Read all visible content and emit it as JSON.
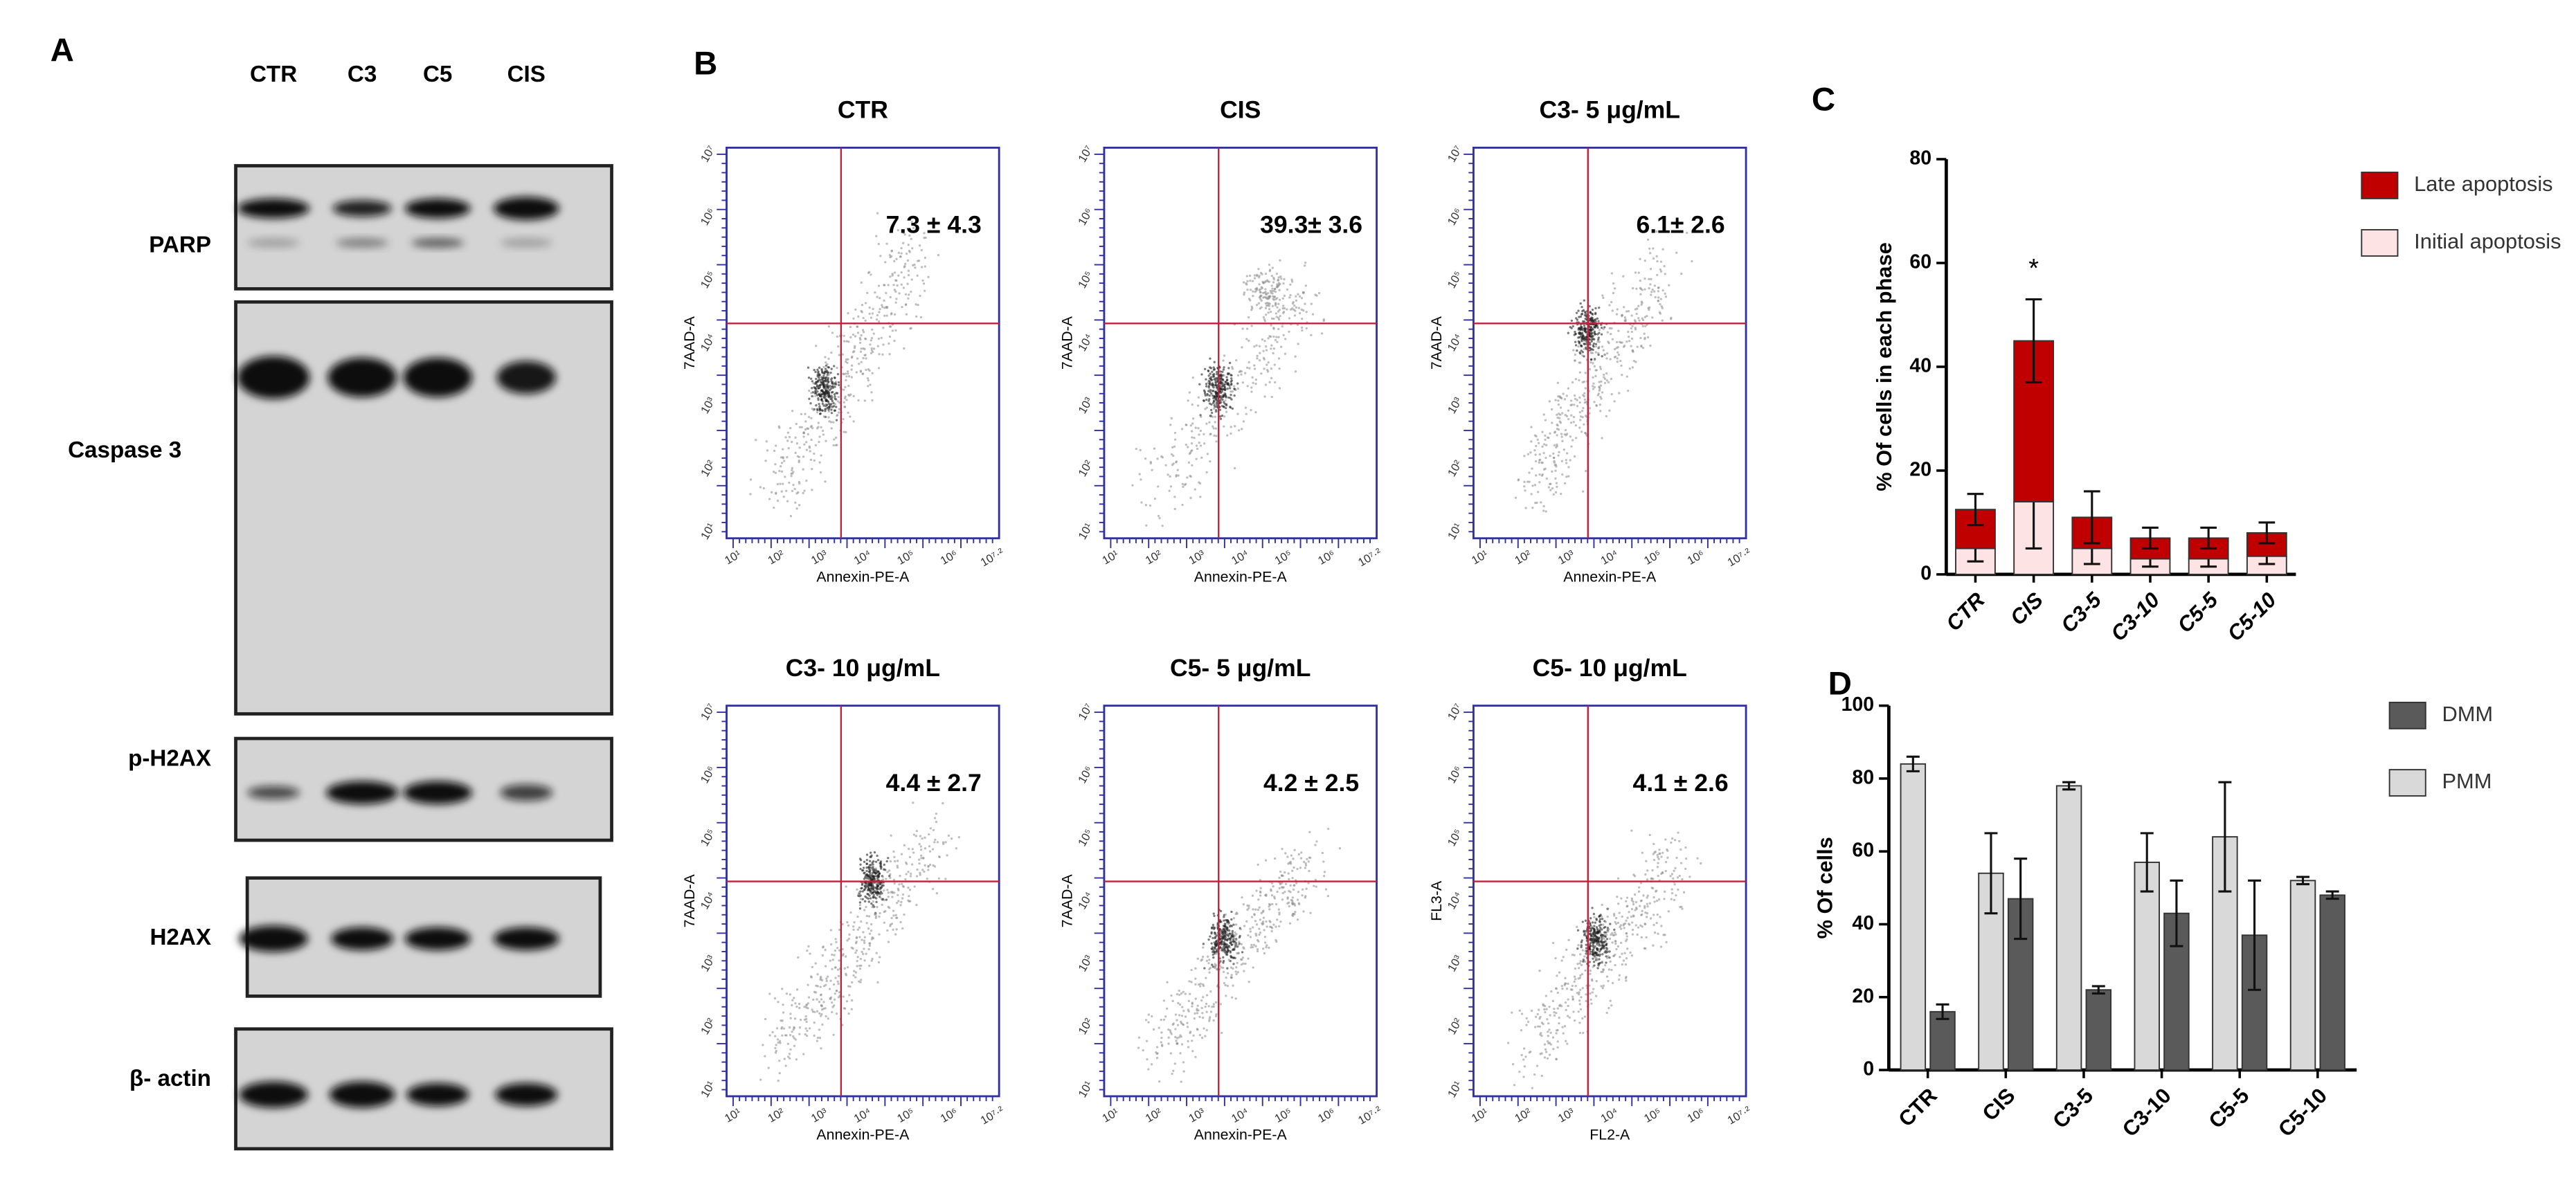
{
  "panel_a": {
    "label": "A",
    "lanes": [
      "CTR",
      "C3",
      "C5",
      "CIS"
    ],
    "blots": [
      "PARP",
      "Caspase 3",
      "p-H2AX",
      "H2AX",
      "β- actin"
    ]
  },
  "panel_b": {
    "label": "B",
    "x_ticks": [
      "10¹",
      "10²",
      "10³",
      "10⁴",
      "10⁵",
      "10⁶",
      "10⁷·²"
    ],
    "y_ticks": [
      "10¹",
      "10²",
      "10³",
      "10⁴",
      "10⁵",
      "10⁶",
      "10⁷"
    ],
    "plots": [
      {
        "title": "CTR",
        "value": "7.3 ± 4.3",
        "x_label": "Annexin-PE-A",
        "y_label": "7AAD-A"
      },
      {
        "title": "CIS",
        "value": "39.3± 3.6",
        "x_label": "Annexin-PE-A",
        "y_label": "7AAD-A"
      },
      {
        "title": "C3- 5 μg/mL",
        "value": "6.1± 2.6",
        "x_label": "Annexin-PE-A",
        "y_label": "7AAD-A"
      },
      {
        "title": "C3- 10 μg/mL",
        "value": "4.4 ± 2.7",
        "x_label": "Annexin-PE-A",
        "y_label": "7AAD-A"
      },
      {
        "title": "C5- 5 μg/mL",
        "value": "4.2 ± 2.5",
        "x_label": "Annexin-PE-A",
        "y_label": "7AAD-A"
      },
      {
        "title": "C5- 10 μg/mL",
        "value": "4.1 ± 2.6",
        "x_label": "FL2-A",
        "y_label": "FL3-A"
      }
    ]
  },
  "chart_data": [
    {
      "type": "stacked_bar",
      "panel": "C",
      "y_label": "% Of cells in each phase",
      "annotation": "*",
      "categories": [
        "CTR",
        "CIS",
        "C3-5",
        "C3-10",
        "C5-5",
        "C5-10"
      ],
      "series": [
        {
          "name": "Late apoptosis",
          "color": "#c00000",
          "values": [
            7.5,
            31,
            6,
            4,
            4,
            4.5
          ],
          "errors": [
            3,
            8,
            5,
            2,
            2,
            2
          ]
        },
        {
          "name": "Initial apoptosis",
          "color": "#fde3e3",
          "values": [
            5,
            14,
            5,
            3,
            3,
            3.5
          ],
          "errors": [
            2.5,
            9,
            3,
            1.5,
            1.5,
            1.5
          ]
        }
      ],
      "ylim": [
        0,
        80
      ],
      "yticks": [
        0,
        20,
        40,
        60,
        80
      ]
    },
    {
      "type": "grouped_bar",
      "panel": "D",
      "y_label": "% Of cells",
      "categories": [
        "CTR",
        "CIS",
        "C3-5",
        "C3-10",
        "C5-5",
        "C5-10"
      ],
      "series": [
        {
          "name": "DMM",
          "color": "#5a5a5a",
          "values": [
            16,
            47,
            22,
            43,
            37,
            48
          ],
          "errors": [
            2,
            11,
            1,
            9,
            15,
            1
          ]
        },
        {
          "name": "PMM",
          "color": "#d9d9d9",
          "values": [
            84,
            54,
            78,
            57,
            64,
            52
          ],
          "errors": [
            2,
            11,
            1,
            8,
            15,
            1
          ]
        }
      ],
      "ylim": [
        0,
        100
      ],
      "yticks": [
        0,
        20,
        40,
        60,
        80,
        100
      ]
    }
  ]
}
